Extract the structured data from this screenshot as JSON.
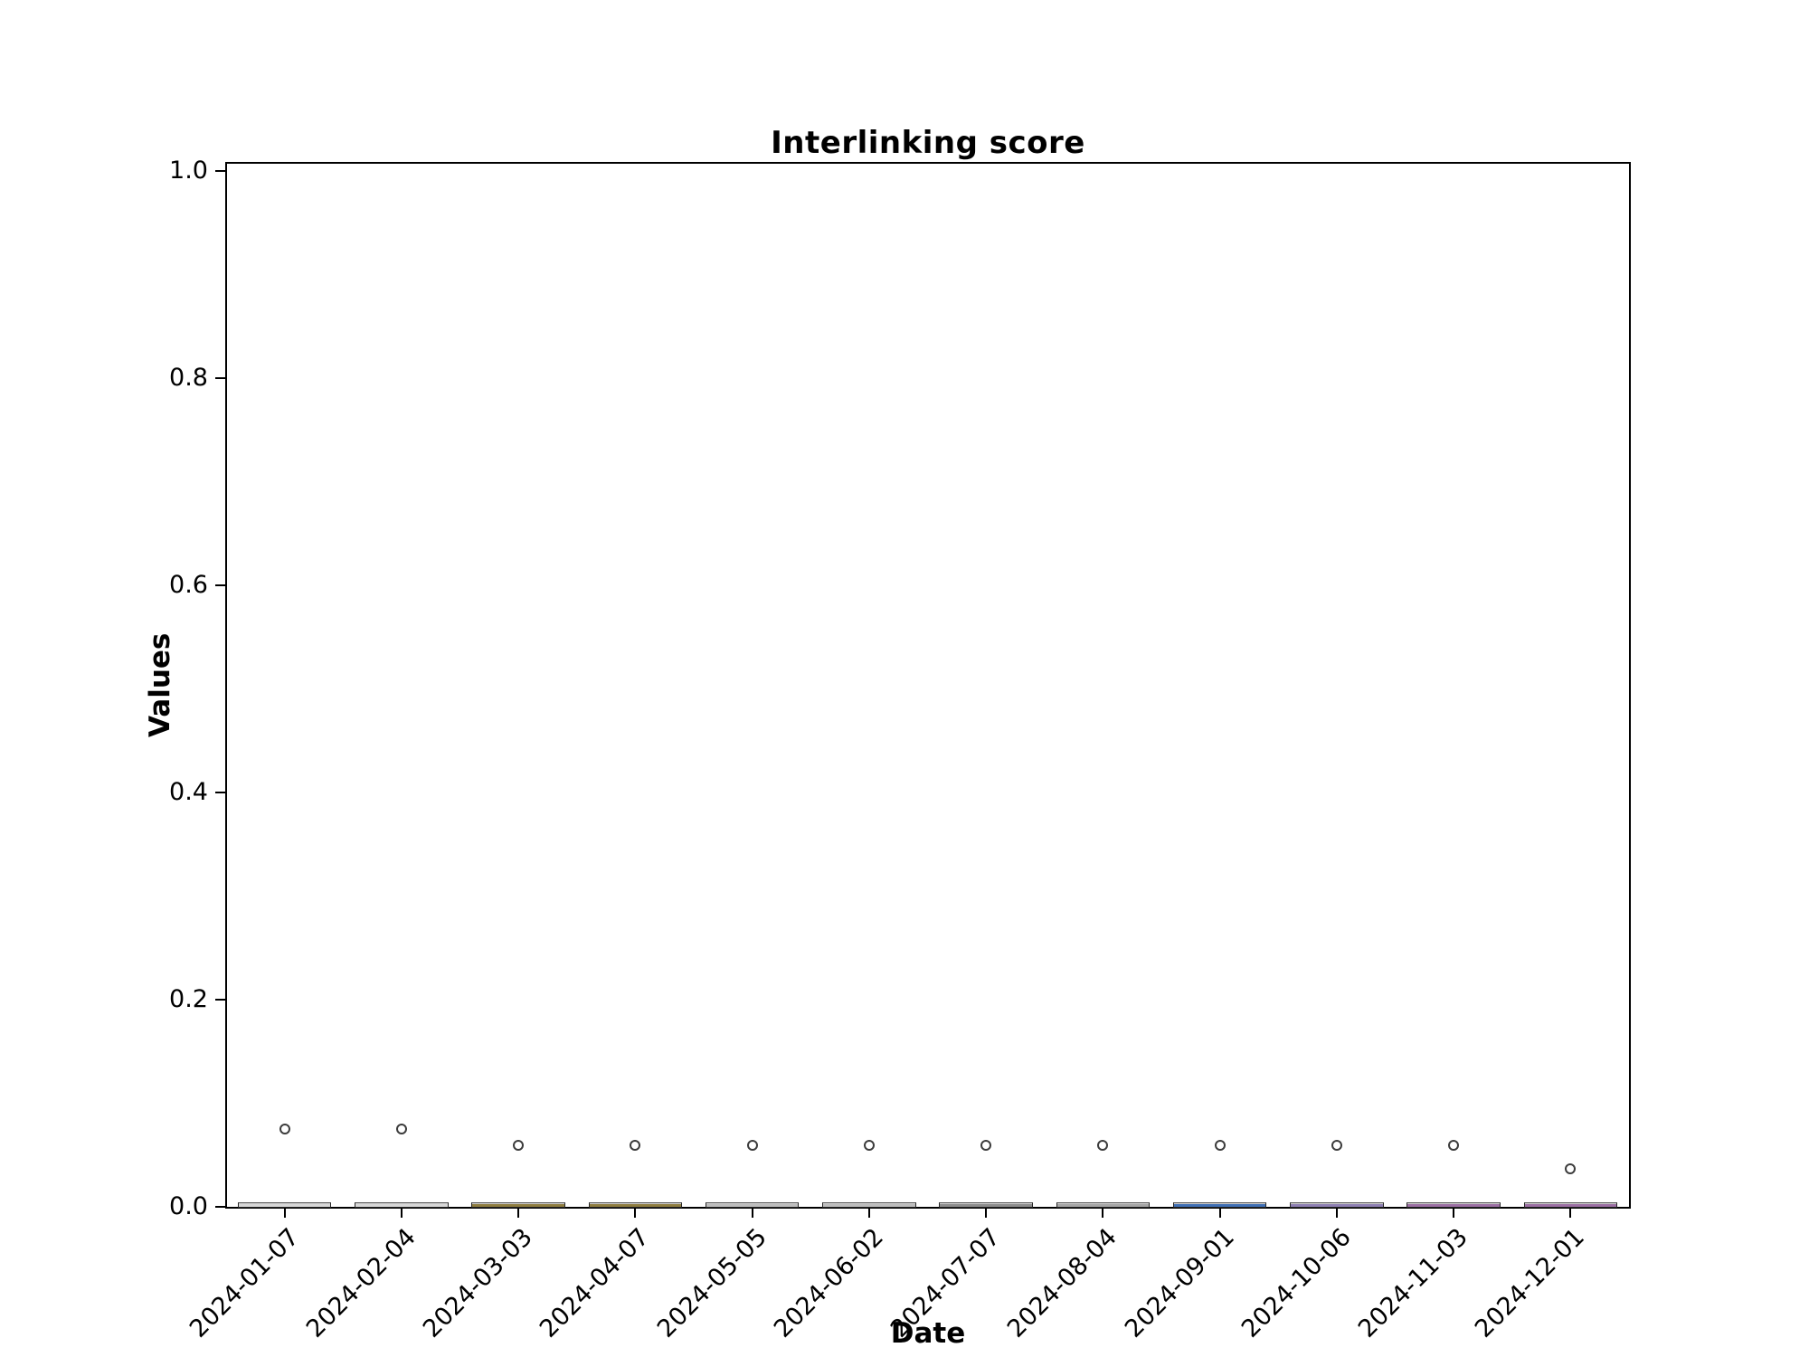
{
  "title": "Interlinking score",
  "axes": {
    "xlabel": "Date",
    "ylabel": "Values",
    "ytick_labels": [
      "0.0",
      "0.2",
      "0.4",
      "0.6",
      "0.8",
      "1.0"
    ],
    "ytick_values": [
      0.0,
      0.2,
      0.4,
      0.6,
      0.8,
      1.0
    ],
    "ylim": [
      0,
      1.01
    ],
    "grid": false,
    "frame": "full-box"
  },
  "colors": {
    "spine": "#000000",
    "box_edge": "#262626",
    "box_top_highlight": "#cfcfcf",
    "flier_edge": "#3c3c3c",
    "background": "#ffffff"
  },
  "chart_data": {
    "type": "boxplot",
    "title": "Interlinking score",
    "xlabel": "Date",
    "ylabel": "Values",
    "ylim": [
      0,
      1.01
    ],
    "yticks": [
      0.0,
      0.2,
      0.4,
      0.6,
      0.8,
      1.0
    ],
    "categories": [
      "2024-01-07",
      "2024-02-04",
      "2024-03-03",
      "2024-04-07",
      "2024-05-05",
      "2024-06-02",
      "2024-07-07",
      "2024-08-04",
      "2024-09-01",
      "2024-10-06",
      "2024-11-03",
      "2024-12-01"
    ],
    "series": [
      {
        "name": "Interlinking score",
        "median": [
          0.002,
          0.002,
          0.002,
          0.002,
          0.002,
          0.002,
          0.002,
          0.002,
          0.002,
          0.002,
          0.002,
          0.002
        ],
        "q1": [
          0.0,
          0.0,
          0.0,
          0.0,
          0.0,
          0.0,
          0.0,
          0.0,
          0.0,
          0.0,
          0.0,
          0.0
        ],
        "q3": [
          0.004,
          0.004,
          0.004,
          0.004,
          0.004,
          0.004,
          0.004,
          0.004,
          0.004,
          0.004,
          0.004,
          0.004
        ],
        "whisker_low": [
          0.0,
          0.0,
          0.0,
          0.0,
          0.0,
          0.0,
          0.0,
          0.0,
          0.0,
          0.0,
          0.0,
          0.0
        ],
        "whisker_high": [
          0.005,
          0.005,
          0.005,
          0.005,
          0.005,
          0.005,
          0.005,
          0.005,
          0.005,
          0.005,
          0.005,
          0.005
        ],
        "outliers": [
          [
            0.075
          ],
          [
            0.075
          ],
          [
            0.059
          ],
          [
            0.059
          ],
          [
            0.059
          ],
          [
            0.059
          ],
          [
            0.059
          ],
          [
            0.059
          ],
          [
            0.059
          ],
          [
            0.059
          ],
          [
            0.059
          ],
          [
            0.037
          ]
        ],
        "box_colors": [
          "#d8d8d8",
          "#d8d8d8",
          "#8f7d3f",
          "#8f7d3f",
          "#bdbdbd",
          "#bdbdbd",
          "#8c8c8c",
          "#a6a6a6",
          "#3f6fb5",
          "#8e7fb3",
          "#9c6fa4",
          "#9c6fa4"
        ]
      }
    ]
  }
}
